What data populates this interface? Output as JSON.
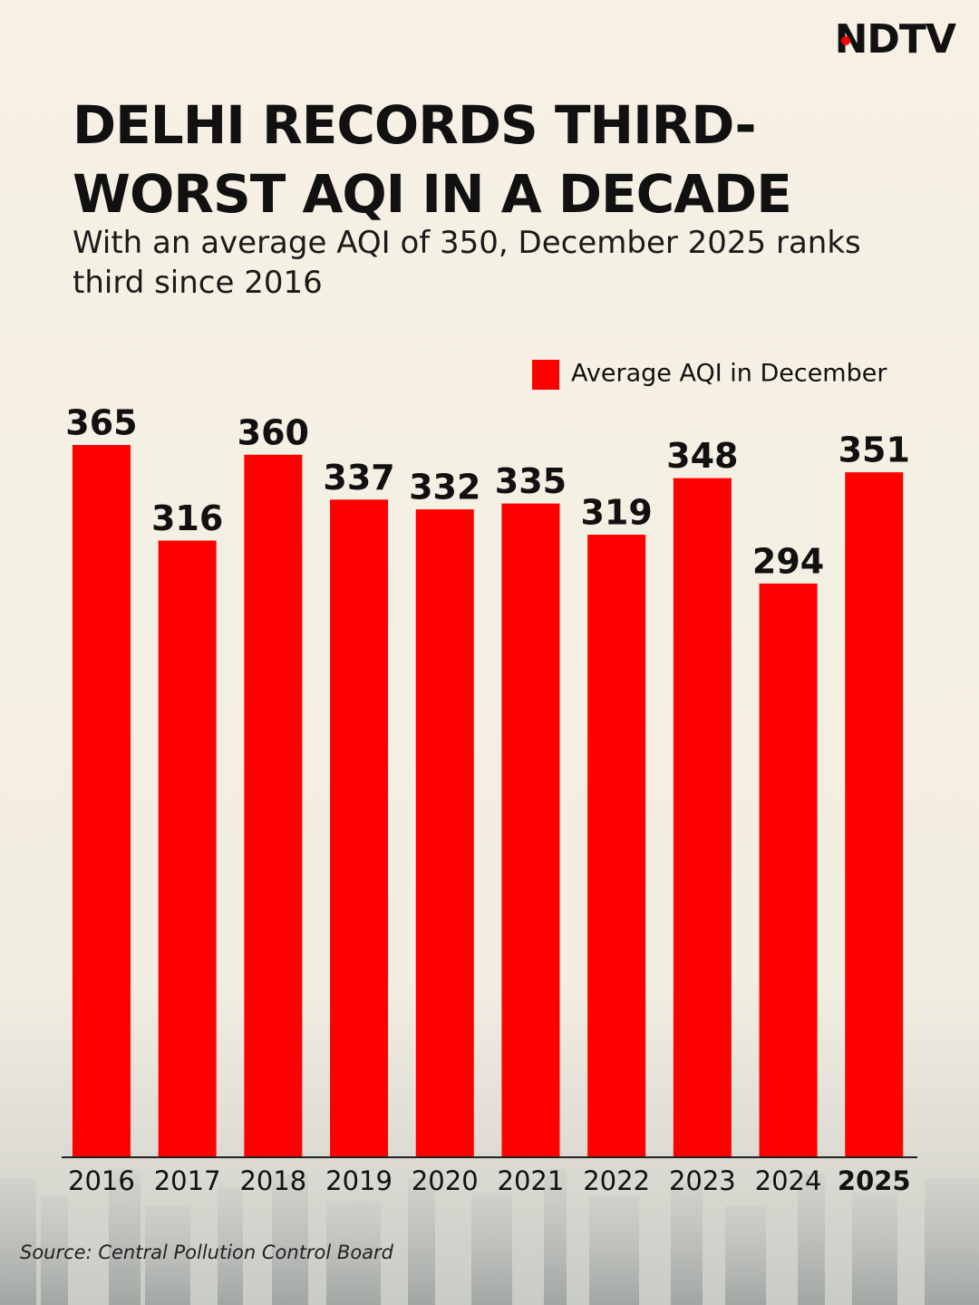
{
  "logo": "NDTV",
  "chart_data": {
    "type": "bar",
    "title": "DELHI RECORDS THIRD-WORST AQI IN A DECADE",
    "subtitle": "With an average AQI of 350, December 2025 ranks third since 2016",
    "categories": [
      "2016",
      "2017",
      "2018",
      "2019",
      "2020",
      "2021",
      "2022",
      "2023",
      "2024",
      "2025"
    ],
    "series": [
      {
        "name": "Average AQI in December",
        "color": "#ff0000",
        "values": [
          365,
          316,
          360,
          337,
          332,
          335,
          319,
          348,
          294,
          351
        ]
      }
    ],
    "ylim": [
      0,
      365
    ],
    "source": "Source: Central Pollution Control Board"
  }
}
